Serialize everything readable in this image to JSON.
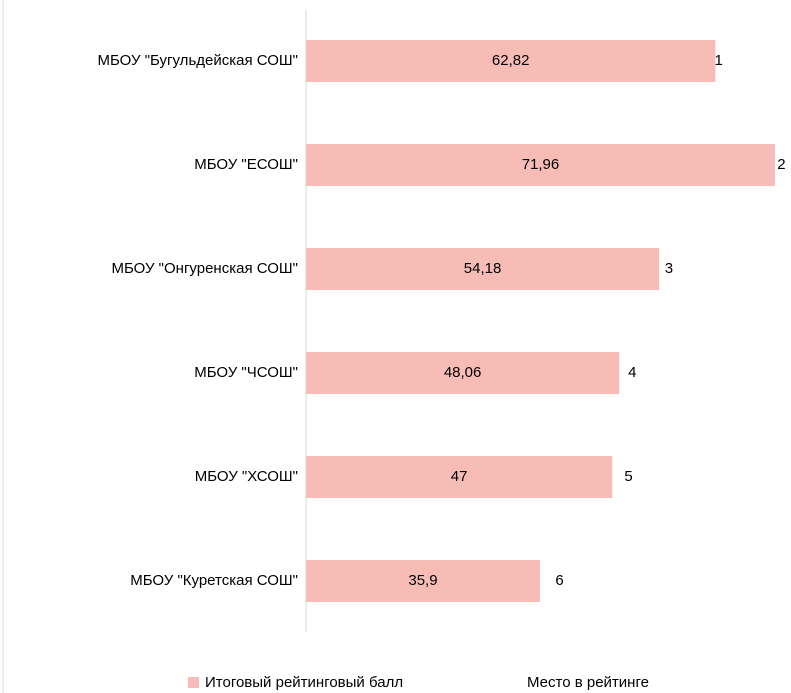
{
  "chart_data": {
    "type": "bar",
    "orientation": "horizontal",
    "stacked": true,
    "categories": [
      "МБОУ \"Бугульдейская СОШ\"",
      "МБОУ \"ЕСОШ\"",
      "МБОУ \"Онгуренская СОШ\"",
      "МБОУ \"ЧСОШ\"",
      "МБОУ \"ХСОШ\"",
      "МБОУ \"Куретская СОШ\""
    ],
    "series": [
      {
        "name": "Итоговый рейтинговый балл",
        "color": "#f8bcb6",
        "values": [
          62.82,
          71.96,
          54.18,
          48.06,
          47,
          35.9
        ],
        "value_labels": [
          "62,82",
          "71,96",
          "54,18",
          "48,06",
          "47",
          "35,9"
        ]
      },
      {
        "name": "Место в рейтинге",
        "values": [
          1,
          2,
          3,
          4,
          5,
          6
        ]
      }
    ],
    "legend": "bottom"
  }
}
